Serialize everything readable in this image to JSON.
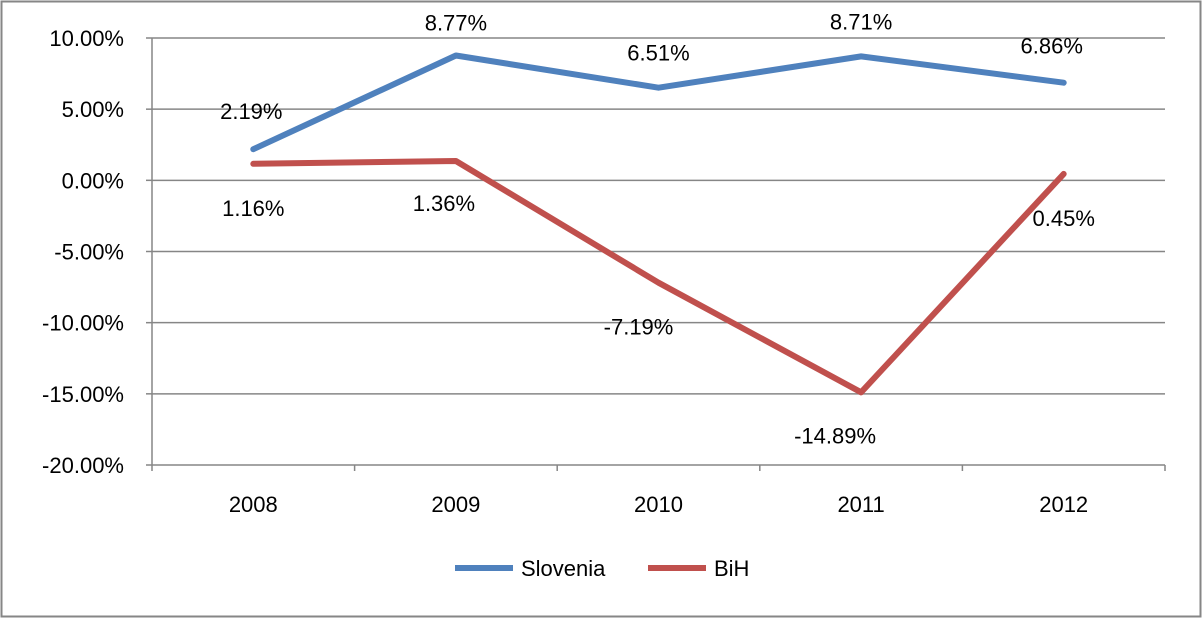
{
  "chart_data": {
    "type": "line",
    "title": "",
    "xlabel": "",
    "ylabel": "",
    "categories": [
      "2008",
      "2009",
      "2010",
      "2011",
      "2012"
    ],
    "ylim": [
      -20,
      10
    ],
    "yticks": [
      10,
      5,
      0,
      -5,
      -10,
      -15,
      -20
    ],
    "ytick_labels": [
      "10.00%",
      "5.00%",
      "0.00%",
      "-5.00%",
      "-10.00%",
      "-15.00%",
      "-20.00%"
    ],
    "grid": "horizontal",
    "legend_position": "bottom",
    "series": [
      {
        "name": "Slovenia",
        "color": "#4F81BD",
        "values": [
          2.19,
          8.77,
          6.51,
          8.71,
          6.86
        ],
        "labels": [
          "2.19%",
          "8.77%",
          "6.51%",
          "8.71%",
          "6.86%"
        ]
      },
      {
        "name": "BiH",
        "color": "#C0504D",
        "values": [
          1.16,
          1.36,
          -7.19,
          -14.89,
          0.45
        ],
        "labels": [
          "1.16%",
          "1.36%",
          "-7.19%",
          "-14.89%",
          "0.45%"
        ]
      }
    ]
  }
}
